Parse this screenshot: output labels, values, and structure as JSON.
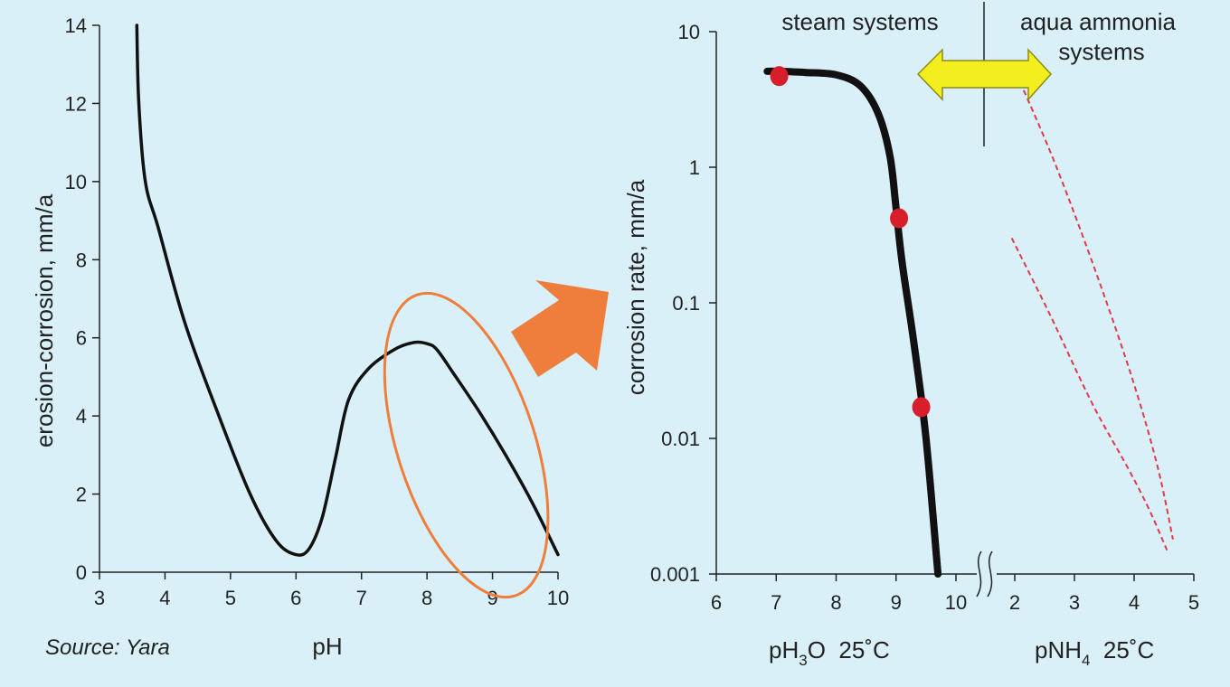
{
  "source_label": "Source: Yara",
  "colors": {
    "background": "#d9f0f8",
    "curve": "#111111",
    "highlight_ellipse": "#ef7d3c",
    "pointer_arrow": "#ef7d3c",
    "double_arrow_fill": "#f3ef1e",
    "double_arrow_stroke": "#8a8a1a",
    "marker": "#d81e2a",
    "dashed": "#e03a48"
  },
  "chart_data": [
    {
      "type": "line",
      "title": "",
      "xlabel": "pH",
      "ylabel": "erosion-corrosion, mm/a",
      "xlim": [
        3,
        10
      ],
      "ylim": [
        0,
        14
      ],
      "x_ticks": [
        3,
        4,
        5,
        6,
        7,
        8,
        9,
        10
      ],
      "x_tick_labels": [
        "3",
        "4",
        "5",
        "6",
        "7",
        "8",
        "9",
        "10"
      ],
      "y_ticks": [
        0,
        2,
        4,
        6,
        8,
        10,
        12,
        14
      ],
      "y_tick_labels": [
        "0",
        "2",
        "4",
        "6",
        "8",
        "10",
        "12",
        "14"
      ],
      "grid": false,
      "series": [
        {
          "x": [
            3.57,
            3.6,
            3.7,
            3.9,
            4.3,
            4.8,
            5.3,
            5.7,
            6.0,
            6.2,
            6.4,
            6.6,
            6.8,
            7.1,
            7.5,
            7.8,
            8.0,
            8.15,
            8.4,
            8.8,
            9.2,
            9.6,
            10.0
          ],
          "y": [
            14.0,
            12.0,
            10.0,
            8.8,
            6.4,
            4.1,
            2.0,
            0.8,
            0.45,
            0.6,
            1.4,
            2.9,
            4.4,
            5.2,
            5.7,
            5.88,
            5.85,
            5.7,
            5.1,
            4.1,
            3.0,
            1.8,
            0.45
          ]
        }
      ],
      "annotations": {
        "highlight_ellipse": {
          "x_center": 8.6,
          "y_center": 3.25,
          "x_semi": 1.05,
          "y_semi": 8.1,
          "tilt_deg": -18
        },
        "pointer_arrow": "toward second chart"
      }
    },
    {
      "type": "line",
      "title": "",
      "ylabel": "corrosion rate, mm/a",
      "y_scale": "log",
      "ylim": [
        0.001,
        10
      ],
      "y_ticks": [
        0.001,
        0.01,
        0.1,
        1,
        10
      ],
      "y_tick_labels": [
        "0.001",
        "0.01",
        "0.1",
        "1",
        "10"
      ],
      "grid": false,
      "axis_break": "between 10 and 2",
      "x_axes": [
        {
          "label_main": "pH",
          "label_sub": "3",
          "label_rest": "O  25˚C",
          "xlim": [
            6,
            10
          ],
          "ticks": [
            6,
            7,
            8,
            9,
            10
          ],
          "tick_labels": [
            "6",
            "7",
            "8",
            "9",
            "10"
          ]
        },
        {
          "label_main": "pNH",
          "label_sub": "4",
          "label_rest": "  25˚C",
          "xlim": [
            2,
            5
          ],
          "ticks": [
            2,
            3,
            4,
            5
          ],
          "tick_labels": [
            "2",
            "3",
            "4",
            "5"
          ]
        }
      ],
      "regions": {
        "left_label": "steam systems",
        "right_label_line1": "aqua ammonia",
        "right_label_line2": "systems"
      },
      "series": [
        {
          "axis": 0,
          "style": "thick-solid",
          "x": [
            6.85,
            7.0,
            7.5,
            8.0,
            8.4,
            8.7,
            8.9,
            9.0,
            9.1,
            9.3,
            9.5,
            9.7
          ],
          "y": [
            5.1,
            5.1,
            5.0,
            4.8,
            4.0,
            2.5,
            1.2,
            0.5,
            0.2,
            0.05,
            0.01,
            0.001
          ]
        },
        {
          "axis": 0,
          "style": "markers",
          "x": [
            7.05,
            9.05,
            9.42
          ],
          "y": [
            4.7,
            0.42,
            0.017
          ]
        },
        {
          "axis": 1,
          "style": "dashed",
          "x": [
            2.15,
            2.7,
            3.4,
            4.0,
            4.4,
            4.65
          ],
          "y": [
            3.7,
            1.0,
            0.15,
            0.025,
            0.006,
            0.0018
          ]
        },
        {
          "axis": 1,
          "style": "dashed",
          "x": [
            1.95,
            2.6,
            3.3,
            3.9,
            4.25,
            4.55
          ],
          "y": [
            0.3,
            0.08,
            0.018,
            0.006,
            0.003,
            0.0015
          ]
        }
      ]
    }
  ]
}
